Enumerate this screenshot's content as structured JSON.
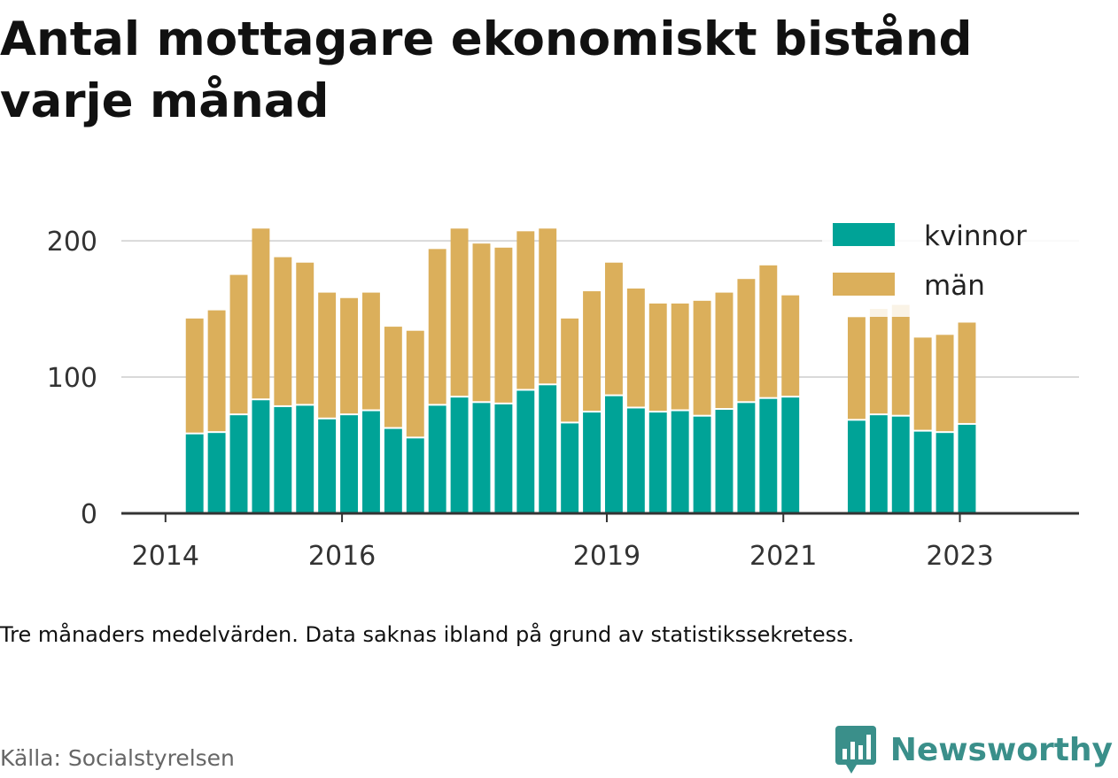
{
  "title": "Antal mottagare ekonomiskt bistånd varje månad",
  "footnote": "Tre månaders medelvärden. Data saknas ibland på grund av statistikssekretess.",
  "source": "Källa: Socialstyrelsen",
  "brand": {
    "name": "Newsworthy",
    "icon": "newsworthy-logo-icon",
    "color": "#3a8f8a"
  },
  "chart_data": {
    "type": "bar",
    "stacked": true,
    "x_ticks": [
      {
        "label": "2014",
        "pos": 2014.0
      },
      {
        "label": "2016",
        "pos": 2016.0
      },
      {
        "label": "2019",
        "pos": 2019.0
      },
      {
        "label": "2021",
        "pos": 2021.0
      },
      {
        "label": "2023",
        "pos": 2023.0
      }
    ],
    "y_ticks": [
      0,
      100,
      200
    ],
    "ylim": [
      0,
      215
    ],
    "xlim": [
      2013.5,
      2024.35
    ],
    "grid": true,
    "legend_position": "top-right",
    "series": [
      {
        "name": "kvinnor",
        "color": "#00a397",
        "values": [
          {
            "x": 2014.33,
            "y": 58
          },
          {
            "x": 2014.58,
            "y": 59
          },
          {
            "x": 2014.83,
            "y": 72
          },
          {
            "x": 2015.08,
            "y": 83
          },
          {
            "x": 2015.33,
            "y": 78
          },
          {
            "x": 2015.58,
            "y": 79
          },
          {
            "x": 2015.83,
            "y": 69
          },
          {
            "x": 2016.08,
            "y": 72
          },
          {
            "x": 2016.33,
            "y": 75
          },
          {
            "x": 2016.58,
            "y": 62
          },
          {
            "x": 2016.83,
            "y": 55
          },
          {
            "x": 2017.08,
            "y": 79
          },
          {
            "x": 2017.33,
            "y": 85
          },
          {
            "x": 2017.58,
            "y": 81
          },
          {
            "x": 2017.83,
            "y": 80
          },
          {
            "x": 2018.08,
            "y": 90
          },
          {
            "x": 2018.33,
            "y": 94
          },
          {
            "x": 2018.58,
            "y": 66
          },
          {
            "x": 2018.83,
            "y": 74
          },
          {
            "x": 2019.08,
            "y": 86
          },
          {
            "x": 2019.33,
            "y": 77
          },
          {
            "x": 2019.58,
            "y": 74
          },
          {
            "x": 2019.83,
            "y": 75
          },
          {
            "x": 2020.08,
            "y": 71
          },
          {
            "x": 2020.33,
            "y": 76
          },
          {
            "x": 2020.58,
            "y": 81
          },
          {
            "x": 2020.83,
            "y": 84
          },
          {
            "x": 2021.08,
            "y": 85
          },
          {
            "x": 2021.83,
            "y": 68
          },
          {
            "x": 2022.08,
            "y": 72
          },
          {
            "x": 2022.33,
            "y": 71
          },
          {
            "x": 2022.58,
            "y": 60
          },
          {
            "x": 2022.83,
            "y": 59
          },
          {
            "x": 2023.08,
            "y": 65
          }
        ]
      },
      {
        "name": "män",
        "color": "#dbaf5b",
        "values": [
          {
            "x": 2014.33,
            "y": 85
          },
          {
            "x": 2014.58,
            "y": 90
          },
          {
            "x": 2014.83,
            "y": 103
          },
          {
            "x": 2015.08,
            "y": 126
          },
          {
            "x": 2015.33,
            "y": 110
          },
          {
            "x": 2015.58,
            "y": 105
          },
          {
            "x": 2015.83,
            "y": 93
          },
          {
            "x": 2016.08,
            "y": 86
          },
          {
            "x": 2016.33,
            "y": 87
          },
          {
            "x": 2016.58,
            "y": 75
          },
          {
            "x": 2016.83,
            "y": 79
          },
          {
            "x": 2017.08,
            "y": 115
          },
          {
            "x": 2017.33,
            "y": 124
          },
          {
            "x": 2017.58,
            "y": 117
          },
          {
            "x": 2017.83,
            "y": 115
          },
          {
            "x": 2018.08,
            "y": 117
          },
          {
            "x": 2018.33,
            "y": 115
          },
          {
            "x": 2018.58,
            "y": 77
          },
          {
            "x": 2018.83,
            "y": 89
          },
          {
            "x": 2019.08,
            "y": 98
          },
          {
            "x": 2019.33,
            "y": 88
          },
          {
            "x": 2019.58,
            "y": 80
          },
          {
            "x": 2019.83,
            "y": 79
          },
          {
            "x": 2020.08,
            "y": 85
          },
          {
            "x": 2020.33,
            "y": 86
          },
          {
            "x": 2020.58,
            "y": 91
          },
          {
            "x": 2020.83,
            "y": 98
          },
          {
            "x": 2021.08,
            "y": 75
          },
          {
            "x": 2021.83,
            "y": 76
          },
          {
            "x": 2022.08,
            "y": 78
          },
          {
            "x": 2022.33,
            "y": 82
          },
          {
            "x": 2022.58,
            "y": 69
          },
          {
            "x": 2022.83,
            "y": 72
          },
          {
            "x": 2023.08,
            "y": 75
          }
        ]
      }
    ]
  }
}
